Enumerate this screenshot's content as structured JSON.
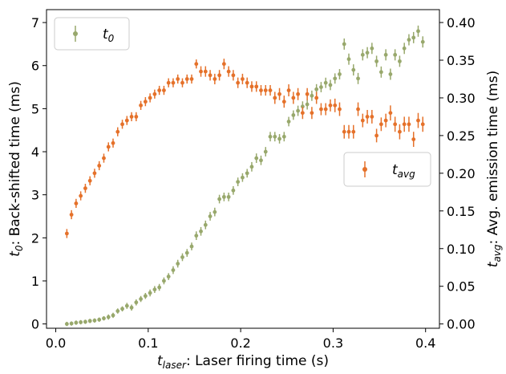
{
  "chart_data": {
    "type": "scatter",
    "x_axis": {
      "label_var": "t",
      "label_sub": "laser",
      "label_text": ": Laser firing time (s)",
      "xlim": [
        -0.01,
        0.415
      ],
      "ticks": [
        0.0,
        0.1,
        0.2,
        0.3,
        0.4
      ],
      "tick_labels": [
        "0.0",
        "0.1",
        "0.2",
        "0.3",
        "0.4"
      ]
    },
    "y_axis_left": {
      "label_var": "t",
      "label_sub": "0",
      "label_text": ": Back-shifted time (ms)",
      "ylim": [
        -0.1,
        7.3
      ],
      "ticks": [
        0,
        1,
        2,
        3,
        4,
        5,
        6,
        7
      ],
      "tick_labels": [
        "0",
        "1",
        "2",
        "3",
        "4",
        "5",
        "6",
        "7"
      ]
    },
    "y_axis_right": {
      "label_var": "t",
      "label_sub": "avg",
      "label_text": ": Avg. emission time (ms)",
      "ylim": [
        -0.0057,
        0.4171
      ],
      "ticks": [
        0.0,
        0.05,
        0.1,
        0.15,
        0.2,
        0.25,
        0.3,
        0.35,
        0.4
      ],
      "tick_labels": [
        "0.00",
        "0.05",
        "0.10",
        "0.15",
        "0.20",
        "0.25",
        "0.30",
        "0.35",
        "0.40"
      ]
    },
    "grid": false,
    "series": [
      {
        "name_var": "t",
        "name_sub": "0",
        "axis": "left",
        "color": "#98A86C",
        "legend_position": "top-left",
        "x": [
          0.012,
          0.017,
          0.022,
          0.027,
          0.032,
          0.037,
          0.042,
          0.047,
          0.052,
          0.057,
          0.062,
          0.067,
          0.072,
          0.077,
          0.082,
          0.087,
          0.092,
          0.097,
          0.102,
          0.107,
          0.112,
          0.117,
          0.122,
          0.127,
          0.132,
          0.137,
          0.142,
          0.147,
          0.152,
          0.157,
          0.162,
          0.167,
          0.172,
          0.177,
          0.182,
          0.187,
          0.192,
          0.197,
          0.202,
          0.207,
          0.212,
          0.217,
          0.222,
          0.227,
          0.232,
          0.237,
          0.242,
          0.247,
          0.252,
          0.257,
          0.262,
          0.267,
          0.272,
          0.277,
          0.282,
          0.287,
          0.292,
          0.297,
          0.302,
          0.307,
          0.312,
          0.317,
          0.322,
          0.327,
          0.332,
          0.337,
          0.342,
          0.347,
          0.352,
          0.357,
          0.362,
          0.367,
          0.372,
          0.377,
          0.382,
          0.387,
          0.392,
          0.397
        ],
        "values": [
          0.0,
          0.01,
          0.03,
          0.04,
          0.05,
          0.07,
          0.08,
          0.1,
          0.13,
          0.16,
          0.2,
          0.3,
          0.35,
          0.42,
          0.38,
          0.5,
          0.58,
          0.65,
          0.72,
          0.8,
          0.85,
          1.0,
          1.1,
          1.25,
          1.4,
          1.55,
          1.65,
          1.8,
          2.05,
          2.15,
          2.3,
          2.5,
          2.6,
          2.9,
          2.95,
          2.95,
          3.1,
          3.3,
          3.4,
          3.5,
          3.65,
          3.85,
          3.8,
          4.0,
          4.35,
          4.35,
          4.3,
          4.35,
          4.7,
          4.85,
          4.95,
          5.05,
          5.1,
          5.3,
          5.45,
          5.5,
          5.6,
          5.55,
          5.7,
          5.8,
          6.5,
          6.15,
          5.9,
          5.7,
          6.25,
          6.3,
          6.4,
          6.1,
          5.85,
          6.25,
          5.8,
          6.25,
          6.1,
          6.4,
          6.6,
          6.65,
          6.8,
          6.55
        ],
        "errors": [
          0.05,
          0.05,
          0.05,
          0.05,
          0.05,
          0.05,
          0.05,
          0.05,
          0.05,
          0.06,
          0.06,
          0.06,
          0.06,
          0.07,
          0.07,
          0.07,
          0.07,
          0.07,
          0.08,
          0.08,
          0.08,
          0.08,
          0.08,
          0.09,
          0.09,
          0.09,
          0.09,
          0.09,
          0.1,
          0.1,
          0.1,
          0.1,
          0.1,
          0.1,
          0.1,
          0.1,
          0.1,
          0.1,
          0.1,
          0.1,
          0.11,
          0.11,
          0.11,
          0.11,
          0.11,
          0.11,
          0.11,
          0.11,
          0.11,
          0.11,
          0.12,
          0.12,
          0.12,
          0.12,
          0.12,
          0.12,
          0.12,
          0.12,
          0.12,
          0.12,
          0.13,
          0.13,
          0.13,
          0.13,
          0.13,
          0.13,
          0.13,
          0.13,
          0.13,
          0.13,
          0.13,
          0.13,
          0.13,
          0.13,
          0.13,
          0.13,
          0.13,
          0.13
        ]
      },
      {
        "name_var": "t",
        "name_sub": "avg",
        "axis": "right",
        "color": "#E5712A",
        "legend_position": "right",
        "x": [
          0.012,
          0.017,
          0.022,
          0.027,
          0.032,
          0.037,
          0.042,
          0.047,
          0.052,
          0.057,
          0.062,
          0.067,
          0.072,
          0.077,
          0.082,
          0.087,
          0.092,
          0.097,
          0.102,
          0.107,
          0.112,
          0.117,
          0.122,
          0.127,
          0.132,
          0.137,
          0.142,
          0.147,
          0.152,
          0.157,
          0.162,
          0.167,
          0.172,
          0.177,
          0.182,
          0.187,
          0.192,
          0.197,
          0.202,
          0.207,
          0.212,
          0.217,
          0.222,
          0.227,
          0.232,
          0.237,
          0.242,
          0.247,
          0.252,
          0.257,
          0.262,
          0.267,
          0.272,
          0.277,
          0.282,
          0.287,
          0.292,
          0.297,
          0.302,
          0.307,
          0.312,
          0.317,
          0.322,
          0.327,
          0.332,
          0.337,
          0.342,
          0.347,
          0.352,
          0.357,
          0.362,
          0.367,
          0.372,
          0.377,
          0.382,
          0.387,
          0.392,
          0.397
        ],
        "values": [
          0.12,
          0.145,
          0.16,
          0.17,
          0.18,
          0.19,
          0.2,
          0.21,
          0.22,
          0.235,
          0.24,
          0.255,
          0.265,
          0.27,
          0.275,
          0.275,
          0.29,
          0.295,
          0.3,
          0.305,
          0.31,
          0.31,
          0.32,
          0.32,
          0.325,
          0.32,
          0.325,
          0.325,
          0.345,
          0.335,
          0.335,
          0.33,
          0.325,
          0.33,
          0.345,
          0.335,
          0.33,
          0.32,
          0.325,
          0.32,
          0.315,
          0.315,
          0.31,
          0.31,
          0.31,
          0.3,
          0.305,
          0.295,
          0.31,
          0.3,
          0.305,
          0.28,
          0.305,
          0.28,
          0.3,
          0.285,
          0.285,
          0.29,
          0.29,
          0.285,
          0.255,
          0.255,
          0.255,
          0.285,
          0.27,
          0.275,
          0.275,
          0.25,
          0.265,
          0.27,
          0.28,
          0.265,
          0.255,
          0.265,
          0.265,
          0.245,
          0.27,
          0.265
        ],
        "errors": [
          0.006,
          0.006,
          0.006,
          0.006,
          0.006,
          0.006,
          0.006,
          0.006,
          0.006,
          0.006,
          0.006,
          0.006,
          0.006,
          0.006,
          0.006,
          0.006,
          0.006,
          0.006,
          0.006,
          0.006,
          0.006,
          0.006,
          0.006,
          0.006,
          0.006,
          0.006,
          0.006,
          0.006,
          0.006,
          0.007,
          0.007,
          0.007,
          0.007,
          0.007,
          0.007,
          0.007,
          0.007,
          0.007,
          0.007,
          0.007,
          0.007,
          0.007,
          0.007,
          0.007,
          0.007,
          0.008,
          0.008,
          0.008,
          0.008,
          0.008,
          0.008,
          0.008,
          0.008,
          0.008,
          0.008,
          0.008,
          0.008,
          0.008,
          0.009,
          0.009,
          0.009,
          0.009,
          0.009,
          0.009,
          0.009,
          0.009,
          0.009,
          0.009,
          0.009,
          0.009,
          0.01,
          0.01,
          0.01,
          0.01,
          0.01,
          0.01,
          0.01,
          0.01
        ]
      }
    ]
  }
}
